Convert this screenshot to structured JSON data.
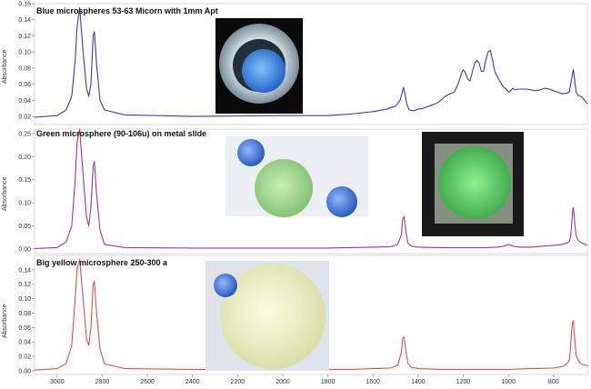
{
  "chart_data": [
    {
      "type": "line",
      "title": "Blue microspheres 53-63 Micorn  with 1mm Apt",
      "ylabel": "Absorbance",
      "xlabel": "",
      "xlim": [
        3100,
        650
      ],
      "ylim": [
        0.01,
        0.16
      ],
      "yticks": [
        0.02,
        0.04,
        0.06,
        0.08,
        0.1,
        0.12,
        0.14,
        0.16
      ],
      "ytick_labels": [
        "0.02",
        "0.04",
        "0.06",
        "0.08",
        "0.10",
        "0.12",
        "0.14",
        "0.16"
      ],
      "color": "#3a3ab8",
      "series": [
        {
          "x": [
            3100,
            3000,
            2960,
            2935,
            2920,
            2912,
            2900,
            2885,
            2870,
            2860,
            2850,
            2840,
            2835,
            2825,
            2810,
            2790,
            2700,
            2400,
            2000,
            1800,
            1700,
            1600,
            1540,
            1500,
            1480,
            1470,
            1465,
            1460,
            1450,
            1440,
            1420,
            1400,
            1380,
            1360,
            1340,
            1320,
            1300,
            1280,
            1260,
            1240,
            1220,
            1210,
            1200,
            1190,
            1180,
            1170,
            1160,
            1150,
            1140,
            1130,
            1120,
            1110,
            1100,
            1090,
            1080,
            1070,
            1060,
            1050,
            1040,
            1030,
            1020,
            1010,
            1000,
            990,
            980,
            970,
            960,
            940,
            920,
            900,
            880,
            860,
            840,
            820,
            800,
            780,
            760,
            740,
            730,
            725,
            720,
            715,
            712,
            710,
            705,
            700,
            695,
            690,
            680,
            670,
            660,
            650
          ],
          "y": [
            0.019,
            0.021,
            0.028,
            0.045,
            0.09,
            0.13,
            0.155,
            0.1,
            0.055,
            0.045,
            0.06,
            0.12,
            0.125,
            0.085,
            0.04,
            0.028,
            0.022,
            0.02,
            0.021,
            0.021,
            0.023,
            0.026,
            0.029,
            0.033,
            0.04,
            0.05,
            0.056,
            0.05,
            0.035,
            0.028,
            0.027,
            0.029,
            0.03,
            0.032,
            0.034,
            0.036,
            0.04,
            0.045,
            0.048,
            0.05,
            0.062,
            0.072,
            0.078,
            0.074,
            0.066,
            0.064,
            0.075,
            0.085,
            0.09,
            0.086,
            0.076,
            0.076,
            0.09,
            0.1,
            0.102,
            0.09,
            0.075,
            0.07,
            0.065,
            0.06,
            0.056,
            0.054,
            0.05,
            0.052,
            0.055,
            0.053,
            0.054,
            0.054,
            0.054,
            0.053,
            0.052,
            0.053,
            0.055,
            0.054,
            0.052,
            0.05,
            0.048,
            0.049,
            0.05,
            0.058,
            0.066,
            0.075,
            0.078,
            0.074,
            0.062,
            0.05,
            0.048,
            0.046,
            0.045,
            0.043,
            0.039,
            0.036
          ]
        }
      ]
    },
    {
      "type": "line",
      "title": "Green microsphere (90-106u) on metal slide",
      "ylabel": "Absorbance",
      "xlabel": "",
      "xlim": [
        3100,
        650
      ],
      "ylim": [
        -0.01,
        0.26
      ],
      "yticks": [
        0.0,
        0.05,
        0.1,
        0.15,
        0.2,
        0.25
      ],
      "ytick_labels": [
        "0.00",
        "0.05",
        "0.10",
        "0.15",
        "0.20",
        "0.25"
      ],
      "color": "#9a3a9a",
      "series": [
        {
          "x": [
            3100,
            3000,
            2960,
            2935,
            2920,
            2912,
            2900,
            2885,
            2870,
            2860,
            2850,
            2840,
            2835,
            2825,
            2810,
            2790,
            2700,
            2400,
            2000,
            1800,
            1700,
            1600,
            1520,
            1490,
            1475,
            1468,
            1462,
            1455,
            1445,
            1430,
            1400,
            1300,
            1200,
            1100,
            1050,
            1020,
            1000,
            980,
            950,
            900,
            850,
            800,
            760,
            740,
            730,
            725,
            720,
            715,
            712,
            710,
            705,
            700,
            690,
            680,
            660,
            650
          ],
          "y": [
            0.001,
            0.003,
            0.015,
            0.05,
            0.15,
            0.23,
            0.26,
            0.16,
            0.07,
            0.05,
            0.09,
            0.18,
            0.19,
            0.12,
            0.04,
            0.01,
            0.003,
            0.002,
            0.002,
            0.002,
            0.003,
            0.004,
            0.005,
            0.01,
            0.03,
            0.065,
            0.07,
            0.04,
            0.012,
            0.006,
            0.004,
            0.003,
            0.003,
            0.003,
            0.004,
            0.006,
            0.01,
            0.006,
            0.004,
            0.004,
            0.006,
            0.008,
            0.01,
            0.013,
            0.016,
            0.025,
            0.05,
            0.085,
            0.09,
            0.08,
            0.05,
            0.03,
            0.018,
            0.014,
            0.01,
            0.008
          ]
        }
      ]
    },
    {
      "type": "line",
      "title": "Big yellow microsphere 250-300 a",
      "ylabel": "Absorbance",
      "xlabel": "",
      "xlim": [
        3100,
        650
      ],
      "ylim": [
        -0.005,
        0.16
      ],
      "yticks": [
        0.0,
        0.02,
        0.04,
        0.06,
        0.08,
        0.1,
        0.12,
        0.14
      ],
      "ytick_labels": [
        "0.00",
        "0.02",
        "0.04",
        "0.06",
        "0.08",
        "0.10",
        "0.12",
        "0.14"
      ],
      "xticks": [
        3000,
        2800,
        2600,
        2400,
        2200,
        2000,
        1800,
        1600,
        1400,
        1200,
        1000,
        800
      ],
      "xtick_labels": [
        "3000",
        "2800",
        "2600",
        "2400",
        "2200",
        "2000",
        "1800",
        "1600",
        "1400",
        "1200",
        "1000",
        "800"
      ],
      "color": "#e05050",
      "series": [
        {
          "x": [
            3100,
            3000,
            2960,
            2935,
            2920,
            2912,
            2900,
            2885,
            2870,
            2860,
            2850,
            2840,
            2835,
            2825,
            2810,
            2790,
            2700,
            2400,
            2000,
            1800,
            1700,
            1600,
            1520,
            1490,
            1475,
            1468,
            1462,
            1455,
            1445,
            1430,
            1400,
            1300,
            1200,
            1100,
            1000,
            900,
            800,
            760,
            740,
            730,
            725,
            720,
            715,
            712,
            710,
            705,
            700,
            690,
            680,
            660,
            650
          ],
          "y": [
            0.001,
            0.003,
            0.01,
            0.035,
            0.1,
            0.14,
            0.155,
            0.1,
            0.045,
            0.035,
            0.06,
            0.12,
            0.124,
            0.08,
            0.03,
            0.01,
            0.003,
            0.002,
            0.002,
            0.002,
            0.002,
            0.003,
            0.004,
            0.008,
            0.025,
            0.045,
            0.047,
            0.03,
            0.01,
            0.005,
            0.003,
            0.002,
            0.002,
            0.002,
            0.002,
            0.003,
            0.004,
            0.006,
            0.01,
            0.015,
            0.03,
            0.055,
            0.068,
            0.07,
            0.06,
            0.04,
            0.022,
            0.014,
            0.01,
            0.008,
            0.007
          ]
        }
      ]
    }
  ],
  "photos": [
    {
      "name": "blue-microsphere-photo",
      "colors": {
        "bg": "#0a0a0a",
        "ring": "#b8c4cc",
        "sphere": "#3f8fe8"
      }
    },
    {
      "name": "green-microsphere-photo",
      "colors": {
        "bg": "#e7eaf0",
        "sphere": "#9fd28a",
        "small": "#3c6fd0"
      }
    },
    {
      "name": "green-microsphere-closeup-photo",
      "colors": {
        "bg": "#1c1c1c",
        "square": "#8e9a8c",
        "sphere": "#6fdc74"
      }
    },
    {
      "name": "yellow-microsphere-photo",
      "colors": {
        "bg": "#dfe2e8",
        "sphere": "#eef2c4",
        "small": "#6f9fe0"
      }
    }
  ]
}
